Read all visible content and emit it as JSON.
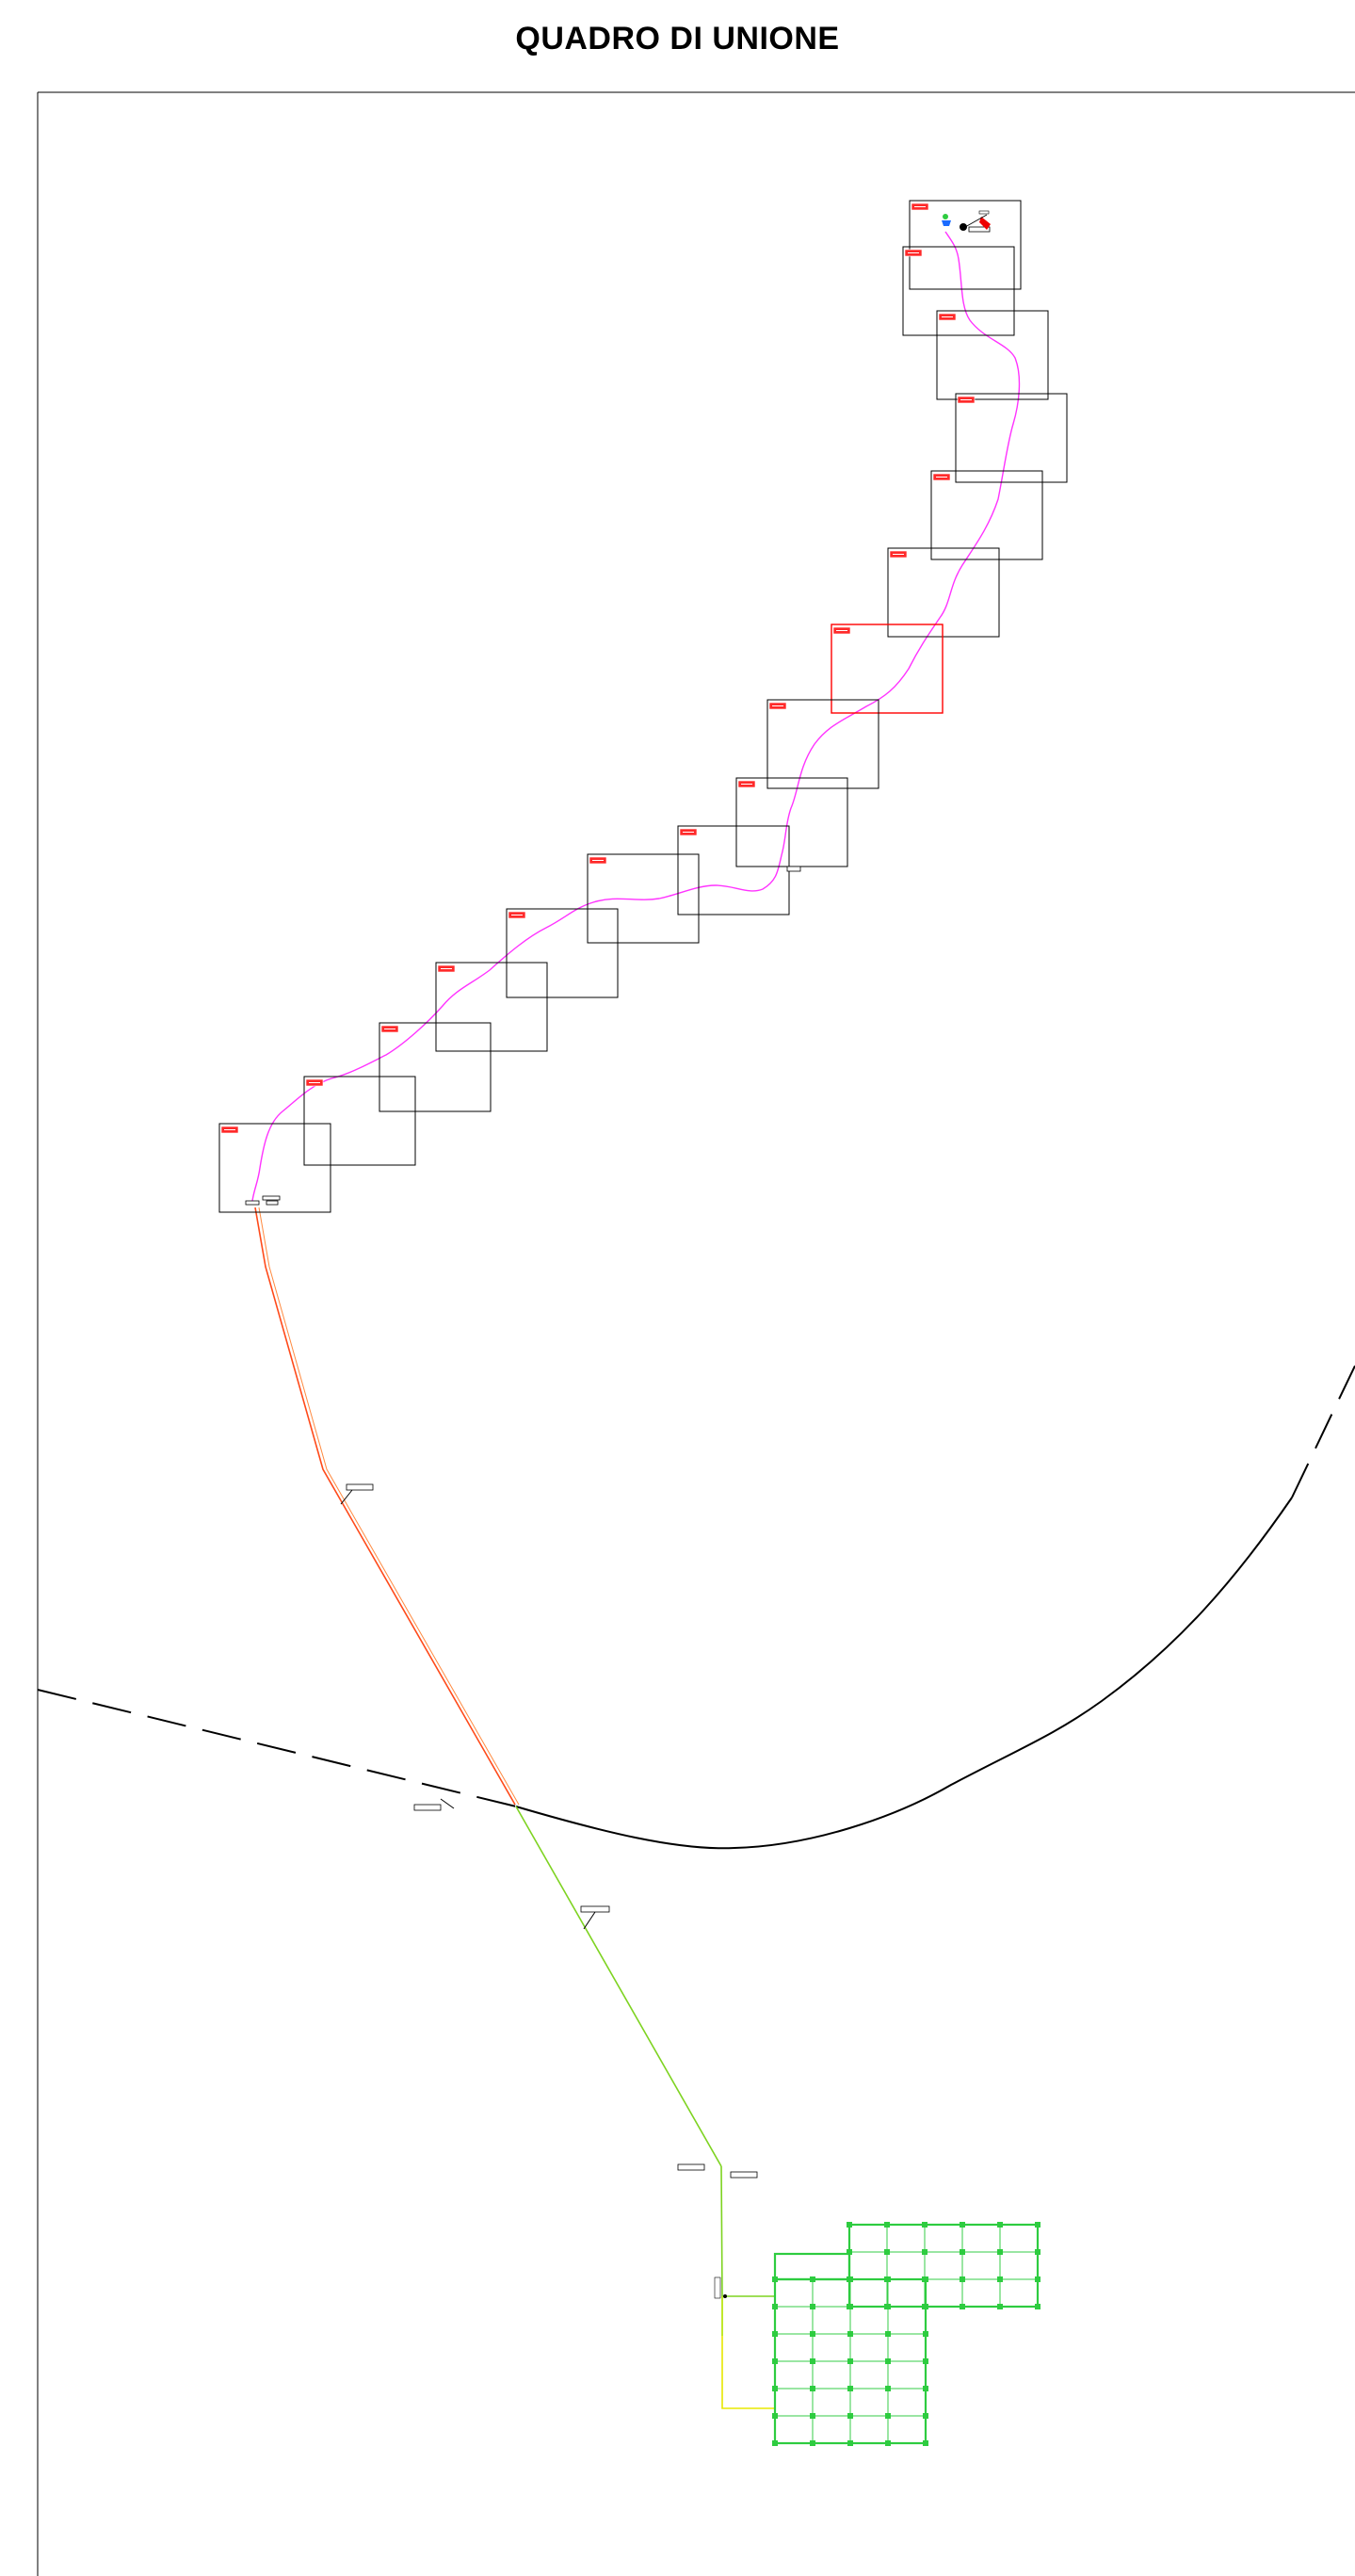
{
  "title": "QUADRO DI UNIONE",
  "colors": {
    "sheet_frame": "#000000",
    "sheet_frame_highlight": "#ff0000",
    "cable_route": "#ff33ff",
    "mv_line": "#ff4a1a",
    "lv_line": "#7ed321",
    "feeder_yellow": "#e8e800",
    "pv_field": "#2ecc40",
    "boundary": "#000000",
    "label_fill": "#ff2a2a"
  },
  "sheets": [
    {
      "id": "sheet-1",
      "highlighted": false
    },
    {
      "id": "sheet-2",
      "highlighted": false
    },
    {
      "id": "sheet-3",
      "highlighted": false
    },
    {
      "id": "sheet-4",
      "highlighted": false
    },
    {
      "id": "sheet-5",
      "highlighted": false
    },
    {
      "id": "sheet-6",
      "highlighted": false
    },
    {
      "id": "sheet-7",
      "highlighted": true
    },
    {
      "id": "sheet-8",
      "highlighted": false
    },
    {
      "id": "sheet-9",
      "highlighted": false
    },
    {
      "id": "sheet-10",
      "highlighted": false
    },
    {
      "id": "sheet-11",
      "highlighted": false
    },
    {
      "id": "sheet-12",
      "highlighted": false
    },
    {
      "id": "sheet-13",
      "highlighted": false
    },
    {
      "id": "sheet-14",
      "highlighted": false
    },
    {
      "id": "sheet-15",
      "highlighted": false
    },
    {
      "id": "sheet-16",
      "highlighted": false
    }
  ],
  "pv_field": {
    "upper_rows": 3,
    "upper_cols": 5,
    "lower_rows": 6,
    "lower_cols": 4
  }
}
